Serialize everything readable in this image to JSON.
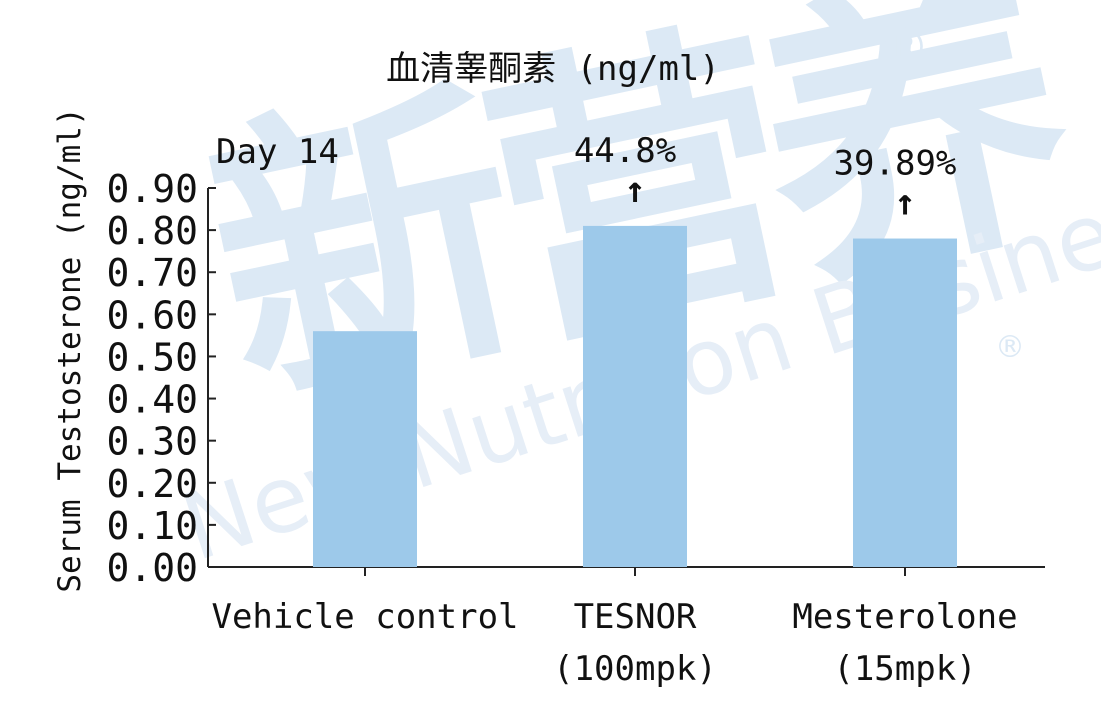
{
  "chart_data": {
    "type": "bar",
    "title": "血清睾酮素 (ng/ml)",
    "annotation": "Day 14",
    "ylabel": "Serum Testosterone (ng/ml)",
    "ylim": [
      0,
      0.9
    ],
    "yticks": [
      "0.00",
      "0.10",
      "0.20",
      "0.30",
      "0.40",
      "0.50",
      "0.60",
      "0.70",
      "0.80",
      "0.90"
    ],
    "categories": [
      {
        "line1": "Vehicle control",
        "line2": ""
      },
      {
        "line1": "TESNOR",
        "line2": "(100mpk)"
      },
      {
        "line1": "Mesterolone",
        "line2": "(15mpk)"
      }
    ],
    "values": [
      0.56,
      0.81,
      0.78
    ],
    "increase_labels": [
      "",
      "44.8%",
      "39.89%"
    ],
    "bar_color": "#9dc9ea",
    "arrow_glyph": "↑",
    "grid": false
  },
  "watermark": {
    "chinese": "新营养",
    "english": "New Nutrition Business",
    "registered_mark": "®"
  }
}
